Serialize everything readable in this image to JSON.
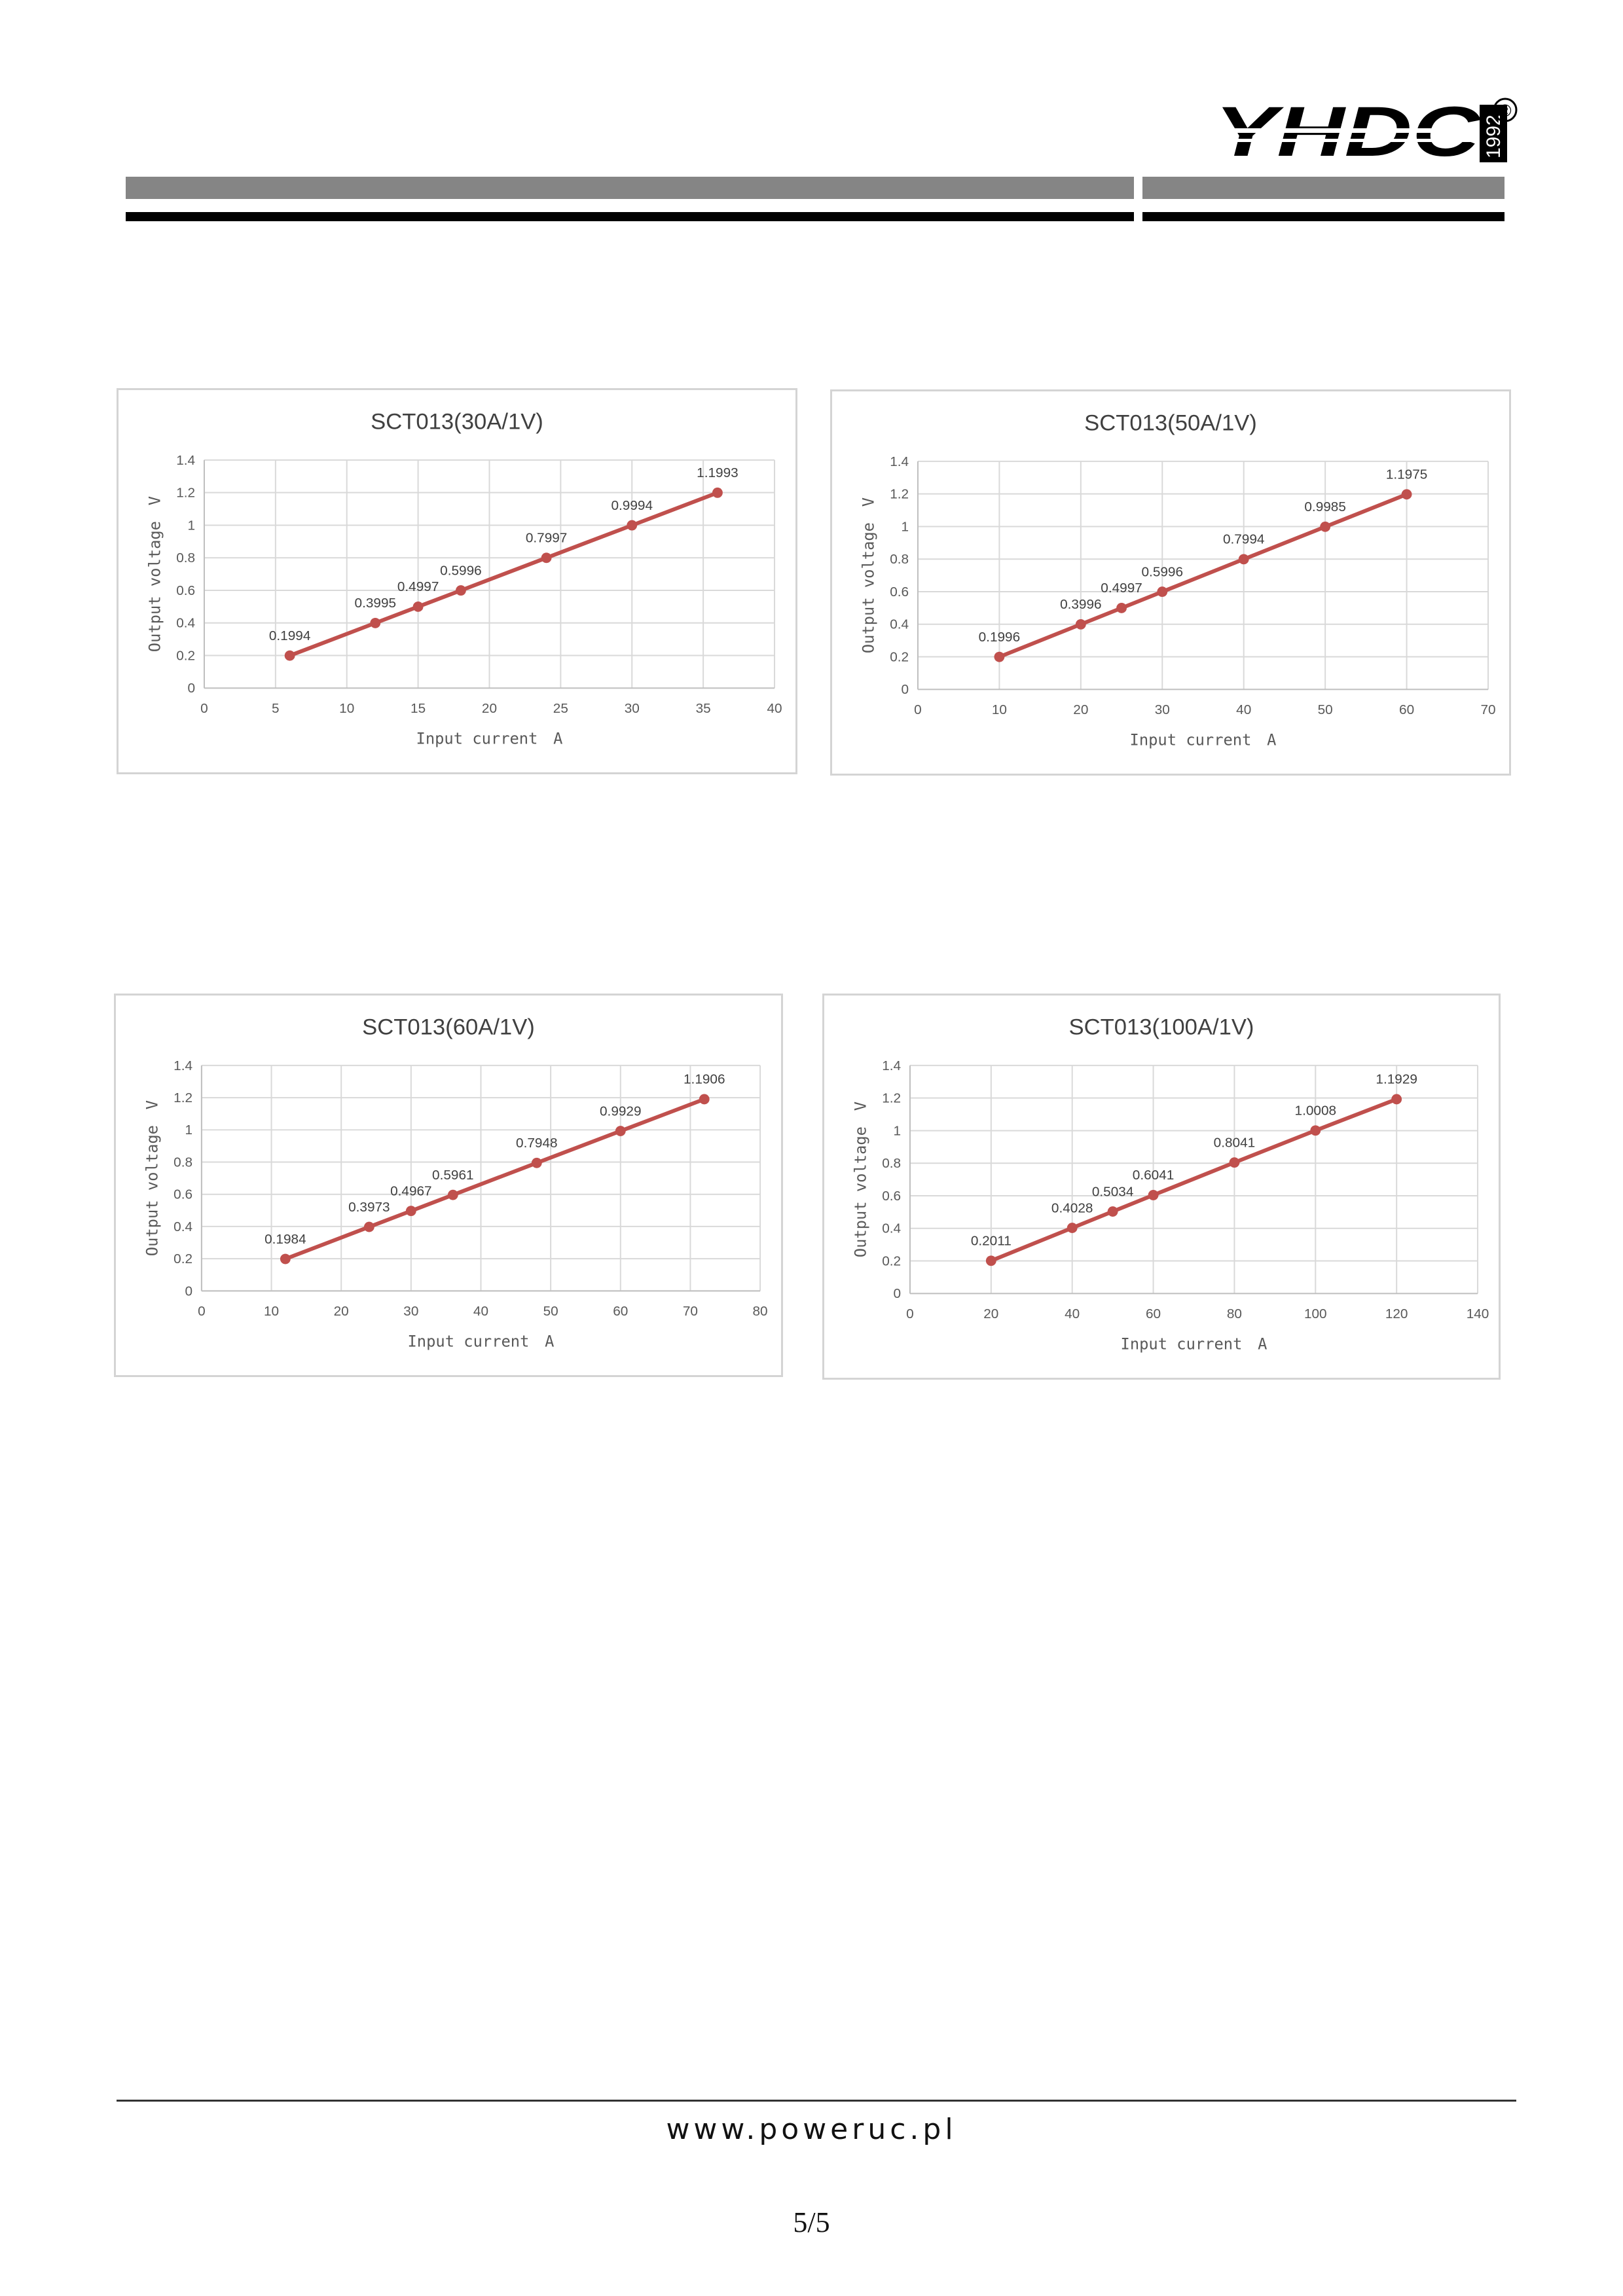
{
  "header": {
    "logo_text": "YHDC",
    "logo_year": "1992",
    "registered_mark": "®"
  },
  "chart_data": [
    {
      "type": "line",
      "title": "SCT013(30A/1V)",
      "xlabel": "Input current　A",
      "ylabel": "Output voltage　V",
      "xlim": [
        0,
        40
      ],
      "xticks": [
        0,
        5,
        10,
        15,
        20,
        25,
        30,
        35,
        40
      ],
      "ylim": [
        0,
        1.4
      ],
      "yticks": [
        "0",
        "0.2",
        "0.4",
        "0.6",
        "0.8",
        "1",
        "1.2",
        "1.4"
      ],
      "grid": true,
      "series": [
        {
          "x": [
            6,
            12,
            15,
            18,
            24,
            30,
            36
          ],
          "values": [
            0.1994,
            0.3995,
            0.4997,
            0.5996,
            0.7997,
            0.9994,
            1.1993
          ],
          "labels": [
            "0.1994",
            "0.3995",
            "0.4997",
            "0.5996",
            "0.7997",
            "0.9994",
            "1.1993"
          ]
        }
      ],
      "color": "#c0504d"
    },
    {
      "type": "line",
      "title": "SCT013(50A/1V)",
      "xlabel": "Input current　A",
      "ylabel": "Output voltage　V",
      "xlim": [
        0,
        70
      ],
      "xticks": [
        0,
        10,
        20,
        30,
        40,
        50,
        60,
        70
      ],
      "ylim": [
        0,
        1.4
      ],
      "yticks": [
        "0",
        "0.2",
        "0.4",
        "0.6",
        "0.8",
        "1",
        "1.2",
        "1.4"
      ],
      "grid": true,
      "series": [
        {
          "x": [
            10,
            20,
            25,
            30,
            40,
            50,
            60
          ],
          "values": [
            0.1996,
            0.3996,
            0.4997,
            0.5996,
            0.7994,
            0.9985,
            1.1975
          ],
          "labels": [
            "0.1996",
            "0.3996",
            "0.4997",
            "0.5996",
            "0.7994",
            "0.9985",
            "1.1975"
          ]
        }
      ],
      "color": "#c0504d"
    },
    {
      "type": "line",
      "title": "SCT013(60A/1V)",
      "xlabel": "Input current　A",
      "ylabel": "Output voltage　V",
      "xlim": [
        0,
        80
      ],
      "xticks": [
        0,
        10,
        20,
        30,
        40,
        50,
        60,
        70,
        80
      ],
      "ylim": [
        0,
        1.4
      ],
      "yticks": [
        "0",
        "0.2",
        "0.4",
        "0.6",
        "0.8",
        "1",
        "1.2",
        "1.4"
      ],
      "grid": true,
      "series": [
        {
          "x": [
            12,
            24,
            30,
            36,
            48,
            60,
            72
          ],
          "values": [
            0.1984,
            0.3973,
            0.4967,
            0.5961,
            0.7948,
            0.9929,
            1.1906
          ],
          "labels": [
            "0.1984",
            "0.3973",
            "0.4967",
            "0.5961",
            "0.7948",
            "0.9929",
            "1.1906"
          ]
        }
      ],
      "color": "#c0504d"
    },
    {
      "type": "line",
      "title": "SCT013(100A/1V)",
      "xlabel": "Input current　A",
      "ylabel": "Output voltage　V",
      "xlim": [
        0,
        140
      ],
      "xticks": [
        0,
        20,
        40,
        60,
        80,
        100,
        120,
        140
      ],
      "ylim": [
        0,
        1.4
      ],
      "yticks": [
        "0",
        "0.2",
        "0.4",
        "0.6",
        "0.8",
        "1",
        "1.2",
        "1.4"
      ],
      "grid": true,
      "series": [
        {
          "x": [
            20,
            40,
            50,
            60,
            80,
            100,
            120
          ],
          "values": [
            0.2011,
            0.4028,
            0.5034,
            0.6041,
            0.8041,
            1.0008,
            1.1929
          ],
          "labels": [
            "0.2011",
            "0.4028",
            "0.5034",
            "0.6041",
            "0.8041",
            "1.0008",
            "1.1929"
          ]
        }
      ],
      "color": "#c0504d"
    }
  ],
  "footer": {
    "url": "www.poweruc.pl",
    "page": "5/5"
  }
}
